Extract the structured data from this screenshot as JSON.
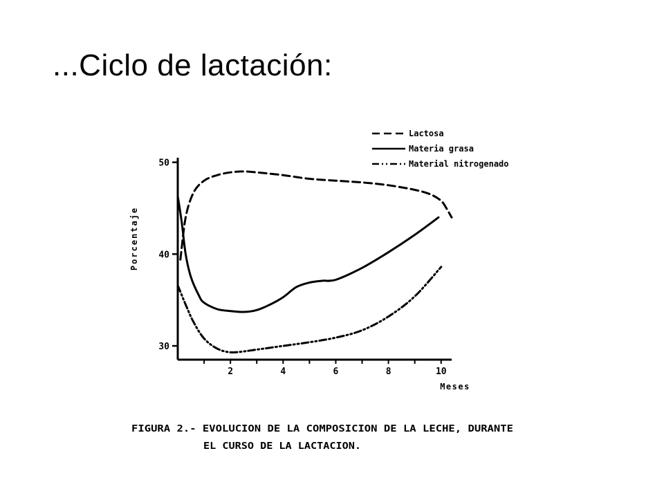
{
  "slide": {
    "title": "...Ciclo de lactación:"
  },
  "figure": {
    "caption": [
      "FIGURA 2.- EVOLUCION DE LA COMPOSICION DE LA LECHE, DURANTE",
      "EL CURSO DE LA LACTACION."
    ]
  },
  "chart_data": {
    "type": "line",
    "title": "",
    "xlabel": "Meses",
    "ylabel": "Porcentaje",
    "xlim": [
      0,
      10.4
    ],
    "ylim": [
      28.5,
      50.5
    ],
    "xticks": [
      2,
      4,
      6,
      8,
      10
    ],
    "xtick_labels": [
      "2",
      "4",
      "6",
      "8",
      "10"
    ],
    "yticks": [
      30,
      40,
      50
    ],
    "ytick_labels": [
      "30",
      "40",
      "50"
    ],
    "grid": false,
    "legend_position": "top-right",
    "series": [
      {
        "name": "Lactosa",
        "line_style": "dashed",
        "color": "#000000",
        "x": [
          0.1,
          0.3,
          0.6,
          1.0,
          1.5,
          2.0,
          2.5,
          3.0,
          4.0,
          5.0,
          6.0,
          7.0,
          8.0,
          9.0,
          9.6,
          10.0,
          10.2,
          10.4
        ],
        "y": [
          39.4,
          44.0,
          46.7,
          48.0,
          48.6,
          48.9,
          49.0,
          48.9,
          48.6,
          48.2,
          48.0,
          47.8,
          47.5,
          47.0,
          46.5,
          45.8,
          45.0,
          44.0
        ]
      },
      {
        "name": "Materia grasa",
        "line_style": "solid",
        "color": "#000000",
        "x": [
          0.0,
          0.15,
          0.3,
          0.5,
          0.8,
          1.0,
          1.5,
          2.0,
          2.5,
          3.0,
          3.5,
          4.0,
          4.5,
          5.0,
          5.5,
          6.0,
          7.0,
          8.0,
          9.0,
          9.9
        ],
        "y": [
          46.3,
          43.5,
          40.0,
          37.5,
          35.5,
          34.7,
          34.0,
          33.8,
          33.7,
          33.9,
          34.5,
          35.3,
          36.4,
          36.9,
          37.1,
          37.2,
          38.5,
          40.2,
          42.1,
          44.0
        ]
      },
      {
        "name": "Material nitrogenado",
        "line_style": "dashdot",
        "color": "#000000",
        "x": [
          0.0,
          0.3,
          0.6,
          1.0,
          1.5,
          2.0,
          2.5,
          3.0,
          4.0,
          5.0,
          6.0,
          7.0,
          8.0,
          9.0,
          10.0
        ],
        "y": [
          36.6,
          34.5,
          32.6,
          30.8,
          29.7,
          29.3,
          29.4,
          29.6,
          30.0,
          30.4,
          30.9,
          31.7,
          33.2,
          35.4,
          38.6
        ]
      }
    ]
  }
}
